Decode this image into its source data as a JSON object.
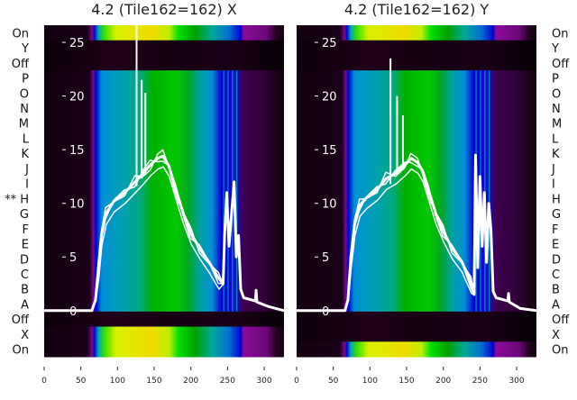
{
  "chart_data": {
    "type": "heatmap",
    "x_ticks": [
      0,
      50,
      100,
      150,
      200,
      250,
      300
    ],
    "xlim": [
      0,
      327
    ],
    "overlay_y_ticks": [
      0,
      5,
      10,
      15,
      20,
      25
    ],
    "overlay_ylim": [
      -4.3,
      26.6
    ],
    "row_labels": [
      "On",
      "Y",
      "Off",
      "P",
      "O",
      "N",
      "M",
      "L",
      "K",
      "J",
      "I",
      "** H",
      "G",
      "F",
      "E",
      "D",
      "C",
      "B",
      "A",
      "Off",
      "X",
      "On"
    ],
    "row_labels_right": [
      "On",
      "Y",
      "Off",
      "P",
      "O",
      "N",
      "M",
      "L",
      "K",
      "J",
      "I",
      "H",
      "G",
      "F",
      "E",
      "D",
      "C",
      "B",
      "A",
      "Off",
      "X",
      "On"
    ],
    "panels": [
      {
        "title": "4.2 (Tile162=162) X",
        "row_kinds": [
          "bright",
          "dark",
          "dark",
          "mid",
          "mid",
          "mid",
          "mid",
          "mid",
          "mid",
          "mid",
          "mid",
          "mid",
          "mid",
          "mid",
          "mid",
          "mid",
          "mid",
          "mid",
          "mid",
          "dark",
          "bright",
          "bright"
        ],
        "profile": [
          [
            0,
            0
          ],
          [
            65,
            0
          ],
          [
            70,
            1
          ],
          [
            74,
            4
          ],
          [
            78,
            7
          ],
          [
            84,
            9
          ],
          [
            95,
            10.2
          ],
          [
            110,
            11
          ],
          [
            124,
            12
          ],
          [
            135,
            12.8
          ],
          [
            145,
            13.6
          ],
          [
            155,
            14.2
          ],
          [
            162,
            14.4
          ],
          [
            170,
            13.5
          ],
          [
            180,
            11.2
          ],
          [
            190,
            9
          ],
          [
            200,
            7.2
          ],
          [
            212,
            5.8
          ],
          [
            225,
            4.5
          ],
          [
            238,
            3
          ],
          [
            244,
            2.5
          ],
          [
            246,
            7
          ],
          [
            249,
            11
          ],
          [
            252,
            6
          ],
          [
            256,
            9.5
          ],
          [
            259,
            12
          ],
          [
            262,
            5
          ],
          [
            265,
            7
          ],
          [
            268,
            2
          ],
          [
            272,
            1.2
          ],
          [
            288,
            0.9
          ],
          [
            289,
            1.9
          ],
          [
            290,
            0.8
          ],
          [
            305,
            0.4
          ],
          [
            327,
            0
          ]
        ],
        "spikes": [
          [
            126,
            27
          ],
          [
            133,
            21.5
          ],
          [
            138,
            20.3
          ]
        ]
      },
      {
        "title": "4.2 (Tile162=162) Y",
        "row_kinds": [
          "bright",
          "dark",
          "dark",
          "mid",
          "mid",
          "mid",
          "mid",
          "mid",
          "mid",
          "mid",
          "mid",
          "mid",
          "mid",
          "mid",
          "mid",
          "mid",
          "mid",
          "mid",
          "mid",
          "dark",
          "dark",
          "bright"
        ],
        "profile": [
          [
            0,
            0
          ],
          [
            66,
            0
          ],
          [
            70,
            1
          ],
          [
            74,
            5
          ],
          [
            79,
            8
          ],
          [
            86,
            9.8
          ],
          [
            95,
            10.5
          ],
          [
            110,
            11.3
          ],
          [
            122,
            12.3
          ],
          [
            135,
            12.8
          ],
          [
            148,
            13.6
          ],
          [
            156,
            14.2
          ],
          [
            165,
            13.8
          ],
          [
            172,
            13
          ],
          [
            180,
            11.2
          ],
          [
            190,
            9
          ],
          [
            200,
            7.4
          ],
          [
            212,
            5.8
          ],
          [
            225,
            4.6
          ],
          [
            238,
            2.6
          ],
          [
            242,
            1.5
          ],
          [
            244,
            14.5
          ],
          [
            247,
            4
          ],
          [
            250,
            12.5
          ],
          [
            253,
            6
          ],
          [
            256,
            11
          ],
          [
            259,
            4.5
          ],
          [
            262,
            10
          ],
          [
            265,
            7.5
          ],
          [
            268,
            1.8
          ],
          [
            272,
            1.2
          ],
          [
            288,
            0.9
          ],
          [
            289,
            1.6
          ],
          [
            290,
            0.8
          ],
          [
            305,
            0.2
          ],
          [
            327,
            0
          ]
        ],
        "spikes": [
          [
            128,
            23.5
          ],
          [
            137,
            20
          ],
          [
            145,
            18.2
          ]
        ]
      }
    ],
    "colors": {
      "dark": "#12000f",
      "purple": "#7c0a8c",
      "blue": "#0000d0",
      "teal": "#0090a8",
      "green": "#00b800",
      "yellow": "#e8e400",
      "line": "#ffffff"
    }
  }
}
